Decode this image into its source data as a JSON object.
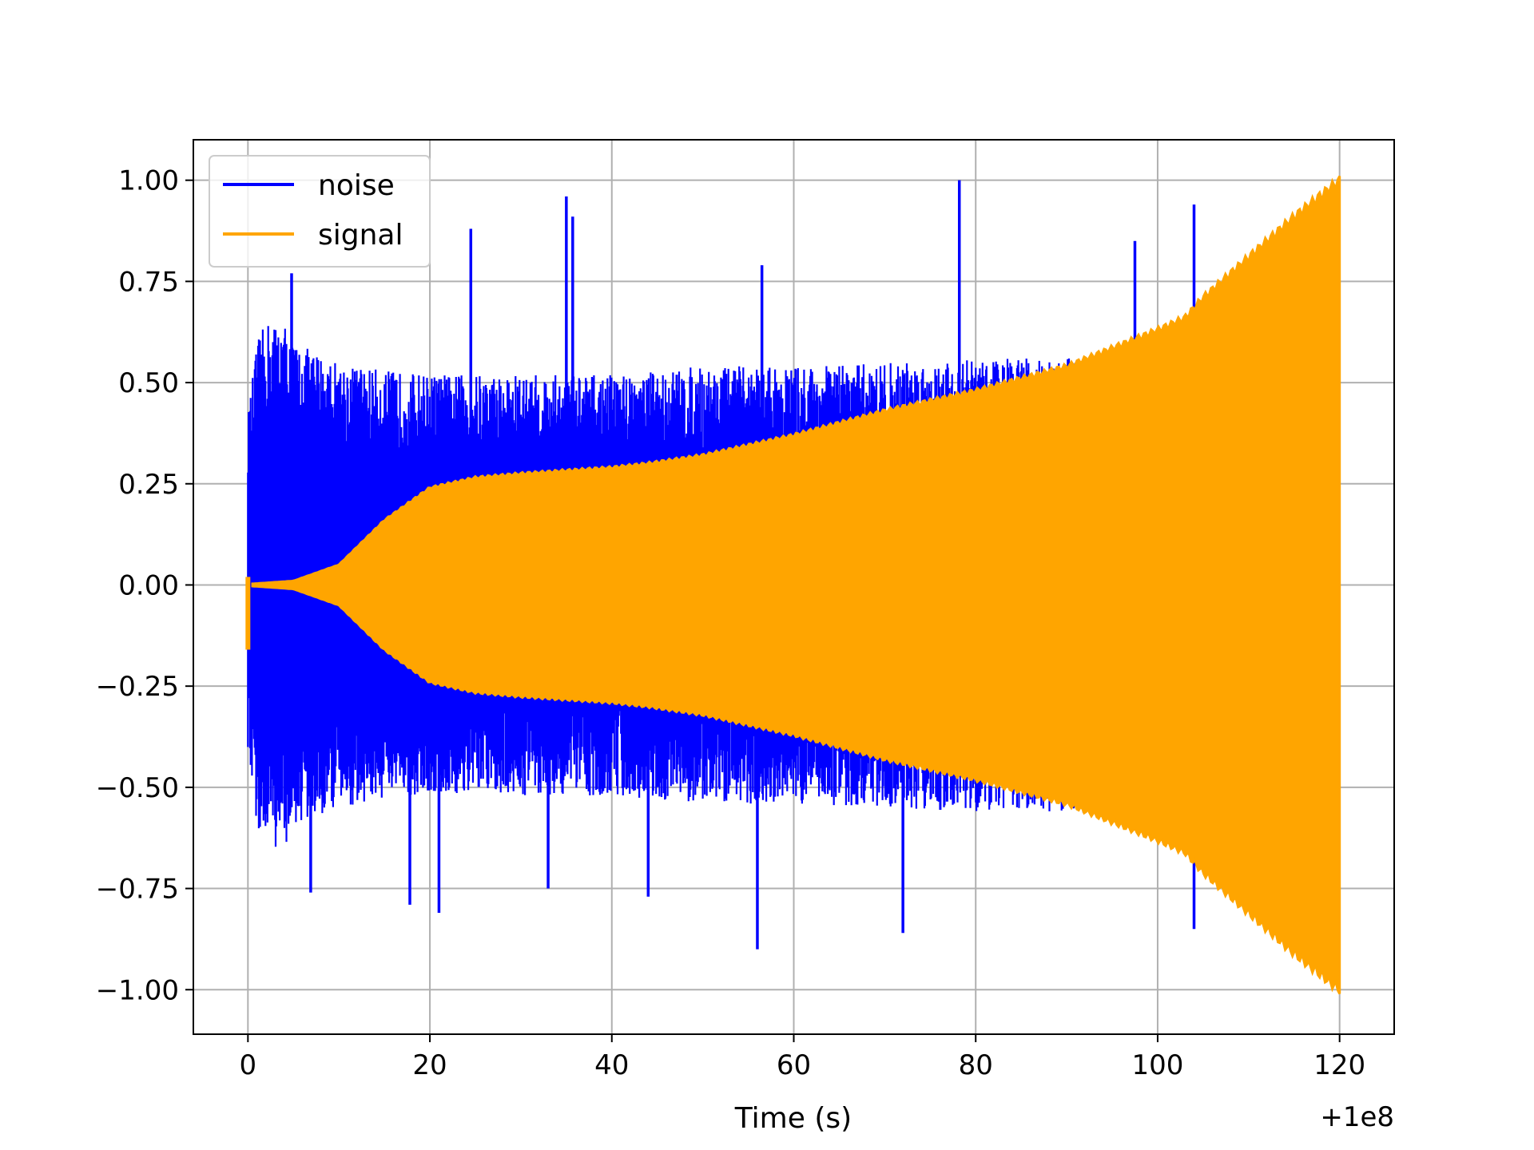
{
  "chart_data": {
    "type": "line",
    "title": "",
    "xlabel": "Time (s)",
    "ylabel": "",
    "x_offset_label": "+1e8",
    "x_offset_value": 100000000,
    "xlim": [
      -6,
      126
    ],
    "ylim": [
      -1.11,
      1.1
    ],
    "xticks": [
      0,
      20,
      40,
      60,
      80,
      100,
      120
    ],
    "xtick_labels": [
      "0",
      "20",
      "40",
      "60",
      "80",
      "100",
      "120"
    ],
    "yticks": [
      1.0,
      0.75,
      0.5,
      0.25,
      0.0,
      -0.25,
      -0.5,
      -0.75,
      -1.0
    ],
    "ytick_labels": [
      "1.00",
      "0.75",
      "0.50",
      "0.25",
      "0.00",
      "−0.25",
      "−0.50",
      "−0.75",
      "−1.00"
    ],
    "grid": true,
    "legend_position": "top-left",
    "series": [
      {
        "name": "noise",
        "color": "#0000ff",
        "envelope_time": [
          0,
          1,
          2,
          3,
          4,
          5,
          7,
          10,
          15,
          20,
          30,
          40,
          50,
          60,
          70,
          80,
          90,
          100,
          104
        ],
        "envelope_amplitude": [
          0.42,
          0.6,
          0.65,
          0.65,
          0.65,
          0.6,
          0.58,
          0.55,
          0.53,
          0.52,
          0.52,
          0.52,
          0.54,
          0.54,
          0.55,
          0.56,
          0.56,
          0.58,
          0.62
        ],
        "spikes": [
          {
            "t": 4.8,
            "value": 0.77
          },
          {
            "t": 24.5,
            "value": 0.88
          },
          {
            "t": 35.0,
            "value": 0.96
          },
          {
            "t": 35.7,
            "value": 0.91
          },
          {
            "t": 56.5,
            "value": 0.79
          },
          {
            "t": 78.2,
            "value": 1.0
          },
          {
            "t": 97.5,
            "value": 0.85
          },
          {
            "t": 104.0,
            "value": 0.94
          },
          {
            "t": 56.0,
            "value": -0.9
          },
          {
            "t": 72.0,
            "value": -0.86
          },
          {
            "t": 104.0,
            "value": -0.85
          },
          {
            "t": 6.9,
            "value": -0.76
          },
          {
            "t": 21.0,
            "value": -0.81
          },
          {
            "t": 17.8,
            "value": -0.79
          },
          {
            "t": 33.0,
            "value": -0.75
          },
          {
            "t": 44.0,
            "value": -0.77
          }
        ]
      },
      {
        "name": "signal",
        "color": "#ffa500",
        "envelope_time": [
          0.5,
          5,
          10,
          15,
          20,
          25,
          30,
          40,
          44,
          50,
          60,
          70,
          80,
          90,
          100,
          103,
          105,
          110,
          115,
          120
        ],
        "envelope_amplitude": [
          0.003,
          0.01,
          0.05,
          0.16,
          0.24,
          0.265,
          0.275,
          0.29,
          0.3,
          0.32,
          0.37,
          0.43,
          0.48,
          0.54,
          0.63,
          0.66,
          0.71,
          0.81,
          0.91,
          1.0
        ],
        "start_transient": {
          "t": 0,
          "min": -0.16,
          "max": 0.02
        }
      }
    ]
  }
}
